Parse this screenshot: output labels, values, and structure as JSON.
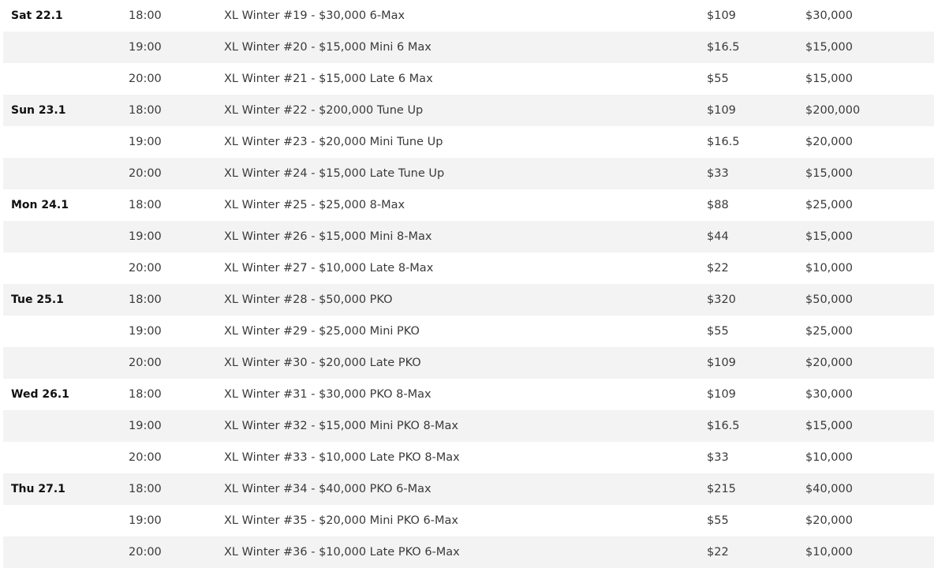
{
  "schedule": [
    {
      "day": "Sat 22.1",
      "time": "18:00",
      "name": "XL Winter #19 - $30,000 6-Max",
      "buyin": "$109",
      "guarantee": "$30,000"
    },
    {
      "day": "",
      "time": "19:00",
      "name": "XL Winter #20 - $15,000 Mini 6 Max",
      "buyin": "$16.5",
      "guarantee": "$15,000"
    },
    {
      "day": "",
      "time": "20:00",
      "name": "XL Winter #21 - $15,000 Late 6 Max",
      "buyin": "$55",
      "guarantee": "$15,000"
    },
    {
      "day": "Sun 23.1",
      "time": "18:00",
      "name": "XL Winter #22 - $200,000 Tune Up",
      "buyin": "$109",
      "guarantee": "$200,000"
    },
    {
      "day": "",
      "time": "19:00",
      "name": "XL Winter #23 - $20,000 Mini Tune Up",
      "buyin": "$16.5",
      "guarantee": "$20,000"
    },
    {
      "day": "",
      "time": "20:00",
      "name": "XL Winter #24 - $15,000 Late Tune Up",
      "buyin": "$33",
      "guarantee": "$15,000"
    },
    {
      "day": "Mon 24.1",
      "time": "18:00",
      "name": "XL Winter #25 - $25,000 8-Max",
      "buyin": "$88",
      "guarantee": "$25,000"
    },
    {
      "day": "",
      "time": "19:00",
      "name": "XL Winter #26 - $15,000 Mini 8-Max",
      "buyin": "$44",
      "guarantee": "$15,000"
    },
    {
      "day": "",
      "time": "20:00",
      "name": "XL Winter #27 - $10,000 Late 8-Max",
      "buyin": "$22",
      "guarantee": "$10,000"
    },
    {
      "day": "Tue 25.1",
      "time": "18:00",
      "name": "XL Winter #28 - $50,000 PKO",
      "buyin": "$320",
      "guarantee": "$50,000"
    },
    {
      "day": "",
      "time": "19:00",
      "name": "XL Winter #29 - $25,000 Mini PKO",
      "buyin": "$55",
      "guarantee": "$25,000"
    },
    {
      "day": "",
      "time": "20:00",
      "name": "XL Winter #30 - $20,000 Late PKO",
      "buyin": "$109",
      "guarantee": "$20,000"
    },
    {
      "day": "Wed 26.1",
      "time": "18:00",
      "name": "XL Winter #31 - $30,000 PKO 8-Max",
      "buyin": "$109",
      "guarantee": "$30,000"
    },
    {
      "day": "",
      "time": "19:00",
      "name": "XL Winter #32 - $15,000 Mini PKO 8-Max",
      "buyin": "$16.5",
      "guarantee": "$15,000"
    },
    {
      "day": "",
      "time": "20:00",
      "name": "XL Winter #33 - $10,000 Late PKO 8-Max",
      "buyin": "$33",
      "guarantee": "$10,000"
    },
    {
      "day": "Thu 27.1",
      "time": "18:00",
      "name": "XL Winter #34 - $40,000 PKO 6-Max",
      "buyin": "$215",
      "guarantee": "$40,000"
    },
    {
      "day": "",
      "time": "19:00",
      "name": "XL Winter #35 - $20,000 Mini PKO 6-Max",
      "buyin": "$55",
      "guarantee": "$20,000"
    },
    {
      "day": "",
      "time": "20:00",
      "name": "XL Winter #36 - $10,000 Late PKO 6-Max",
      "buyin": "$22",
      "guarantee": "$10,000"
    }
  ]
}
